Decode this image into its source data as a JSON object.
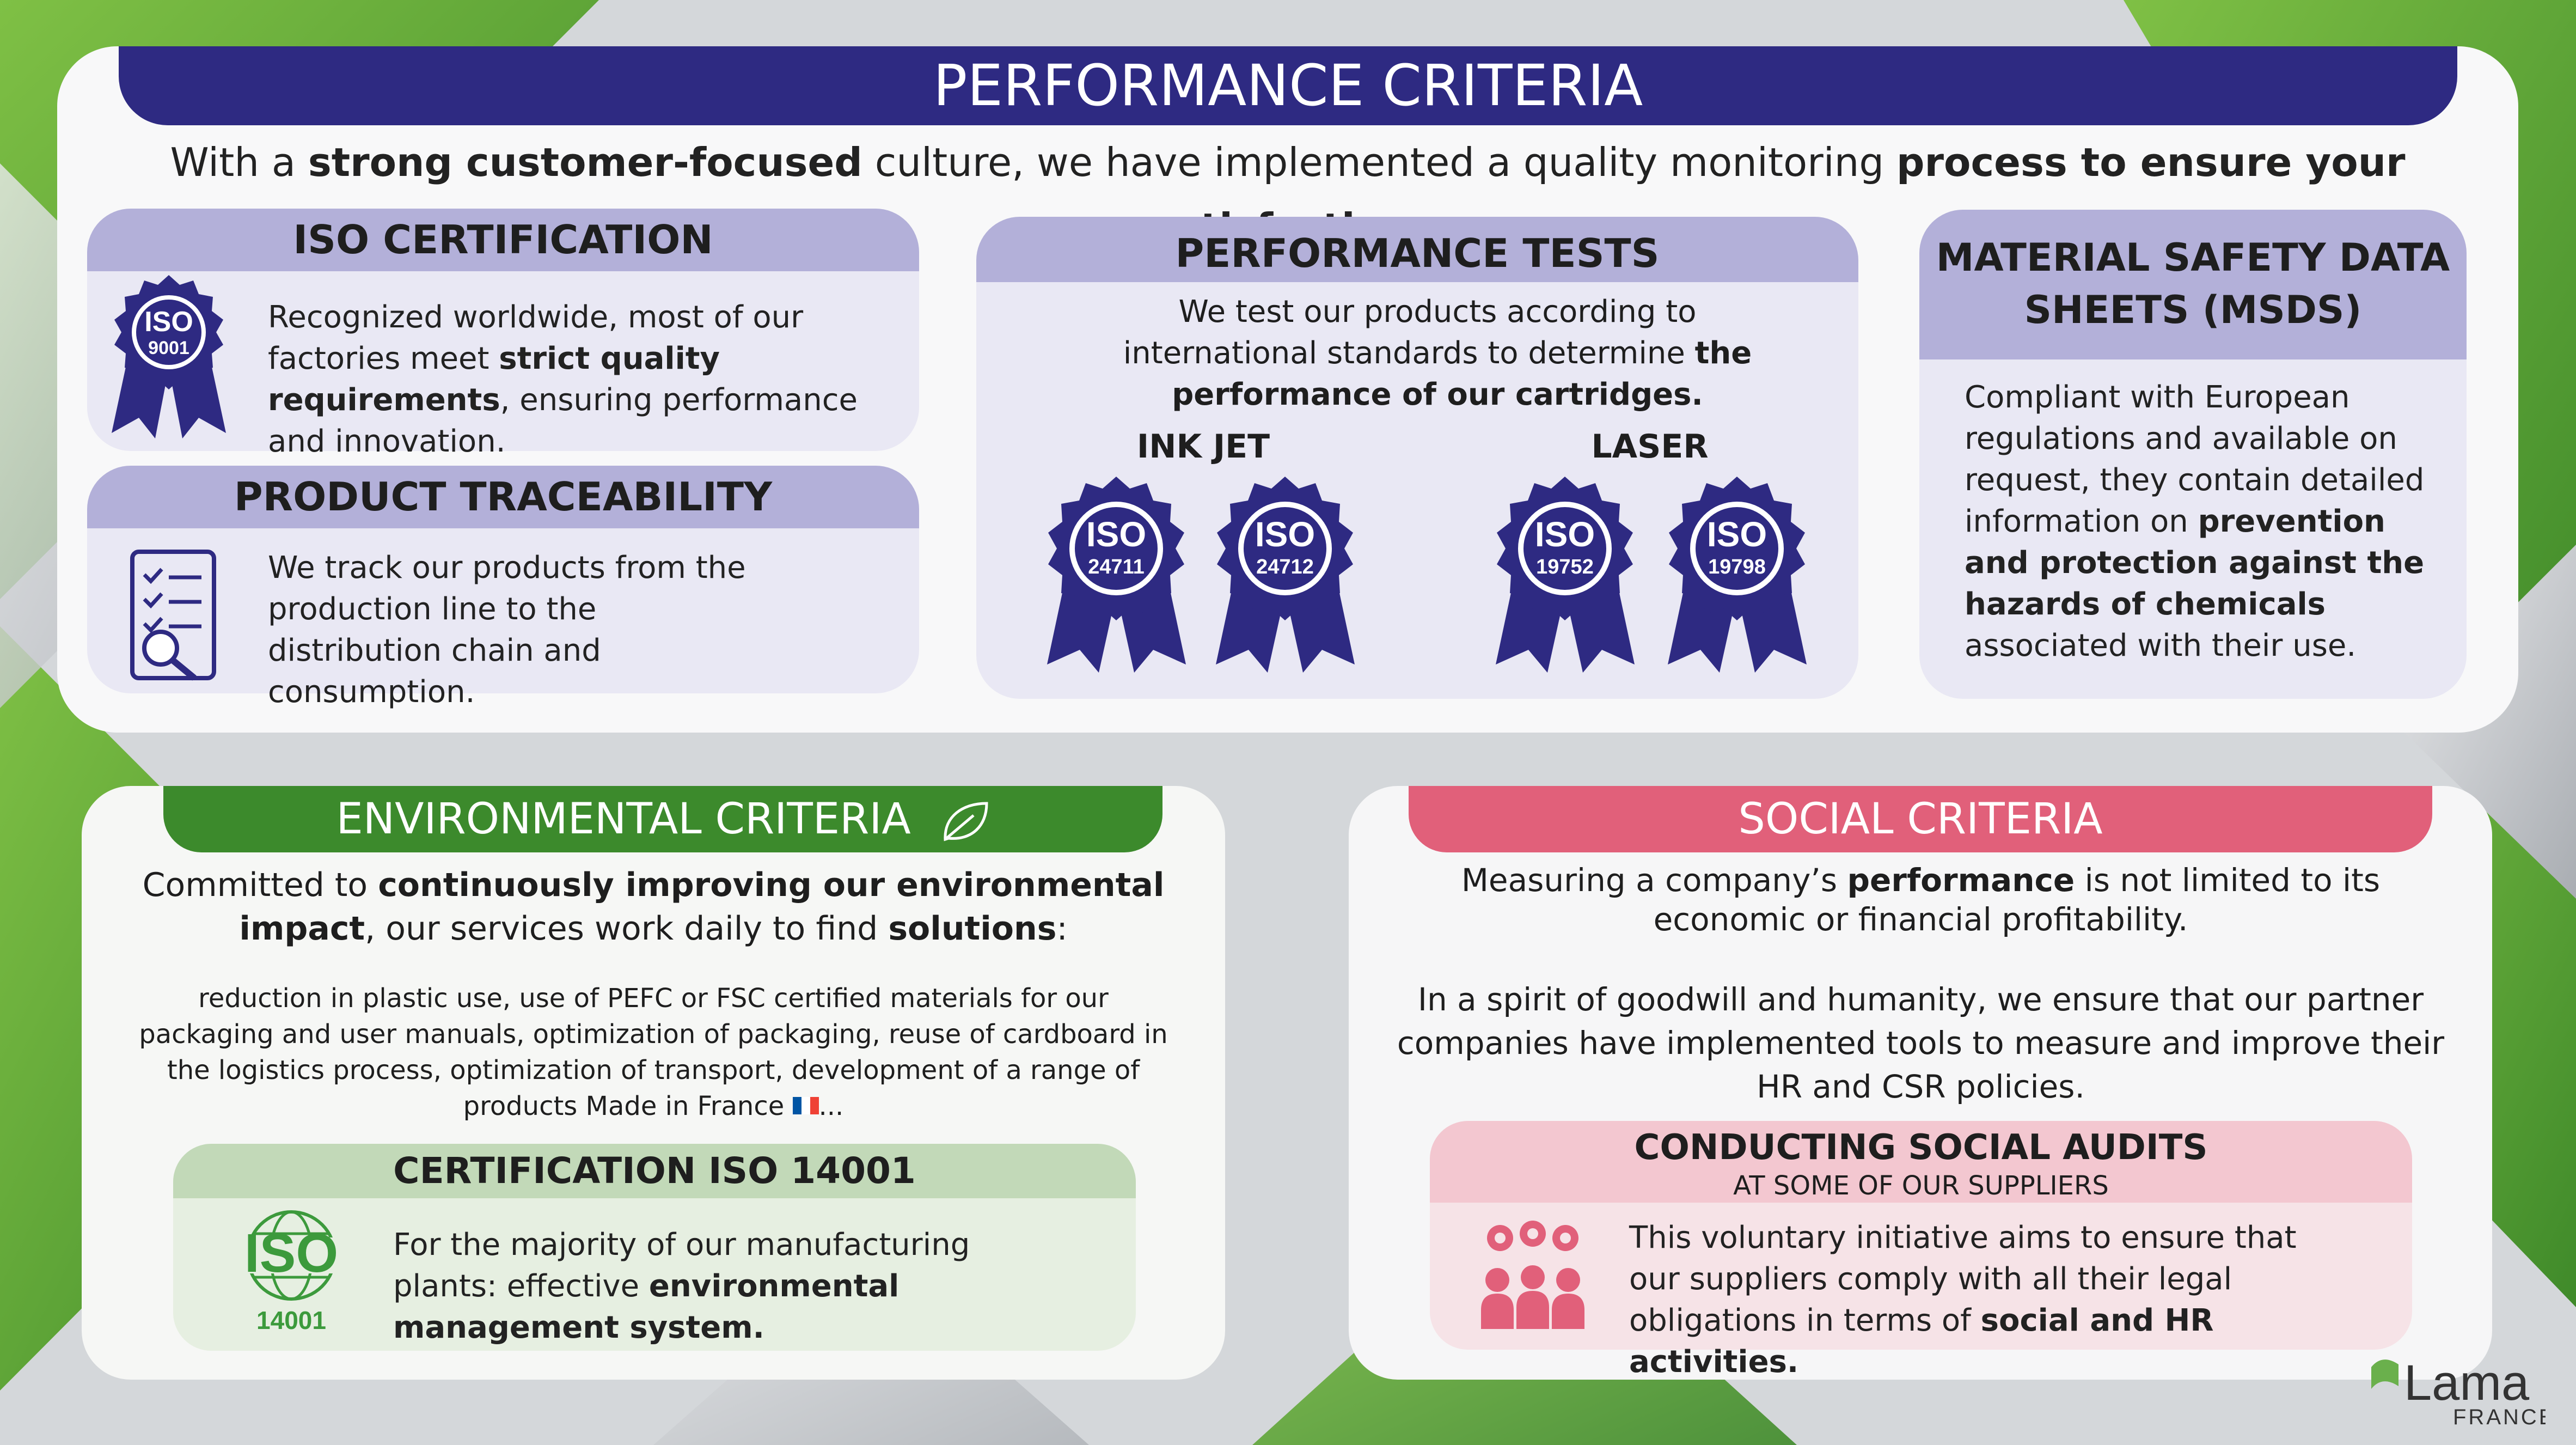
{
  "header": {
    "title": "PERFORMANCE CRITERIA",
    "subtitle_pre": "With a ",
    "subtitle_bold1": "strong customer-focused",
    "subtitle_mid": " culture, we have implemented a quality monitoring ",
    "subtitle_bold2": "process to ensure your satisfaction."
  },
  "iso_certification": {
    "title": "ISO CERTIFICATION",
    "badge": {
      "top": "ISO",
      "bottom": "9001"
    },
    "text_pre": "Recognized worldwide, most of our factories meet ",
    "text_bold": "strict quality requirements",
    "text_post": ", ensuring performance and innovation."
  },
  "traceability": {
    "title": "PRODUCT TRACEABILITY",
    "icon": "checklist-magnifier-icon",
    "text": "We track our products from the production line to the distribution chain and consumption."
  },
  "performance_tests": {
    "title": "PERFORMANCE TESTS",
    "text_pre": "We test our products according to international standards to determine ",
    "text_bold": "the performance of our cartridges.",
    "inkjet_label": "INK JET",
    "laser_label": "LASER",
    "badges": [
      {
        "top": "ISO",
        "bottom": "24711"
      },
      {
        "top": "ISO",
        "bottom": "24712"
      },
      {
        "top": "ISO",
        "bottom": "19752"
      },
      {
        "top": "ISO",
        "bottom": "19798"
      }
    ]
  },
  "msds": {
    "title_line1": "MATERIAL SAFETY DATA",
    "title_line2": "SHEETS (MSDS)",
    "text_pre": "Compliant with European regulations and available on request, they contain detailed information on ",
    "text_bold": "prevention and protection against the hazards of chemicals",
    "text_post": " associated with their use."
  },
  "environmental": {
    "title": "ENVIRONMENTAL CRITERIA",
    "icon": "leaf-icon",
    "intro_pre": "Committed to ",
    "intro_bold1": "continuously improving our environmental impact",
    "intro_mid": ", our services work daily to find ",
    "intro_bold2": "solutions",
    "intro_post": ":",
    "details": "reduction in plastic use, use of PEFC or FSC certified materials for our packaging and user manuals, optimization of packaging, reuse of cardboard in the logistics process, optimization of transport, development of a range of products Made in France",
    "details_end": "...",
    "iso14001": {
      "title": "CERTIFICATION ISO 14001",
      "logo_top": "ISO",
      "logo_bottom": "14001",
      "text_pre": "For the majority of our manufacturing plants: effective ",
      "text_bold": "environmental management system."
    }
  },
  "social": {
    "title": "SOCIAL CRITERIA",
    "p1_pre": "Measuring a company’s ",
    "p1_bold": "performance",
    "p1_post": " is not limited to its economic or financial profitability.",
    "p2": "In a spirit of goodwill and humanity, we ensure that our partner companies have implemented tools to measure and improve their HR and CSR policies.",
    "audits": {
      "title": "CONDUCTING SOCIAL AUDITS",
      "subtitle": "AT SOME OF OUR SUPPLIERS",
      "icon": "people-gears-icon",
      "text_pre": "This voluntary initiative aims to ensure that our suppliers comply with all their legal obligations in terms of ",
      "text_bold": "social and HR activities."
    }
  },
  "brand": {
    "name": "Lama",
    "sub": "FRANCE"
  },
  "colors": {
    "navy": "#2e2a82",
    "lavender": "#b3b0d9",
    "green": "#3c8a2c",
    "pink": "#e1607a"
  }
}
